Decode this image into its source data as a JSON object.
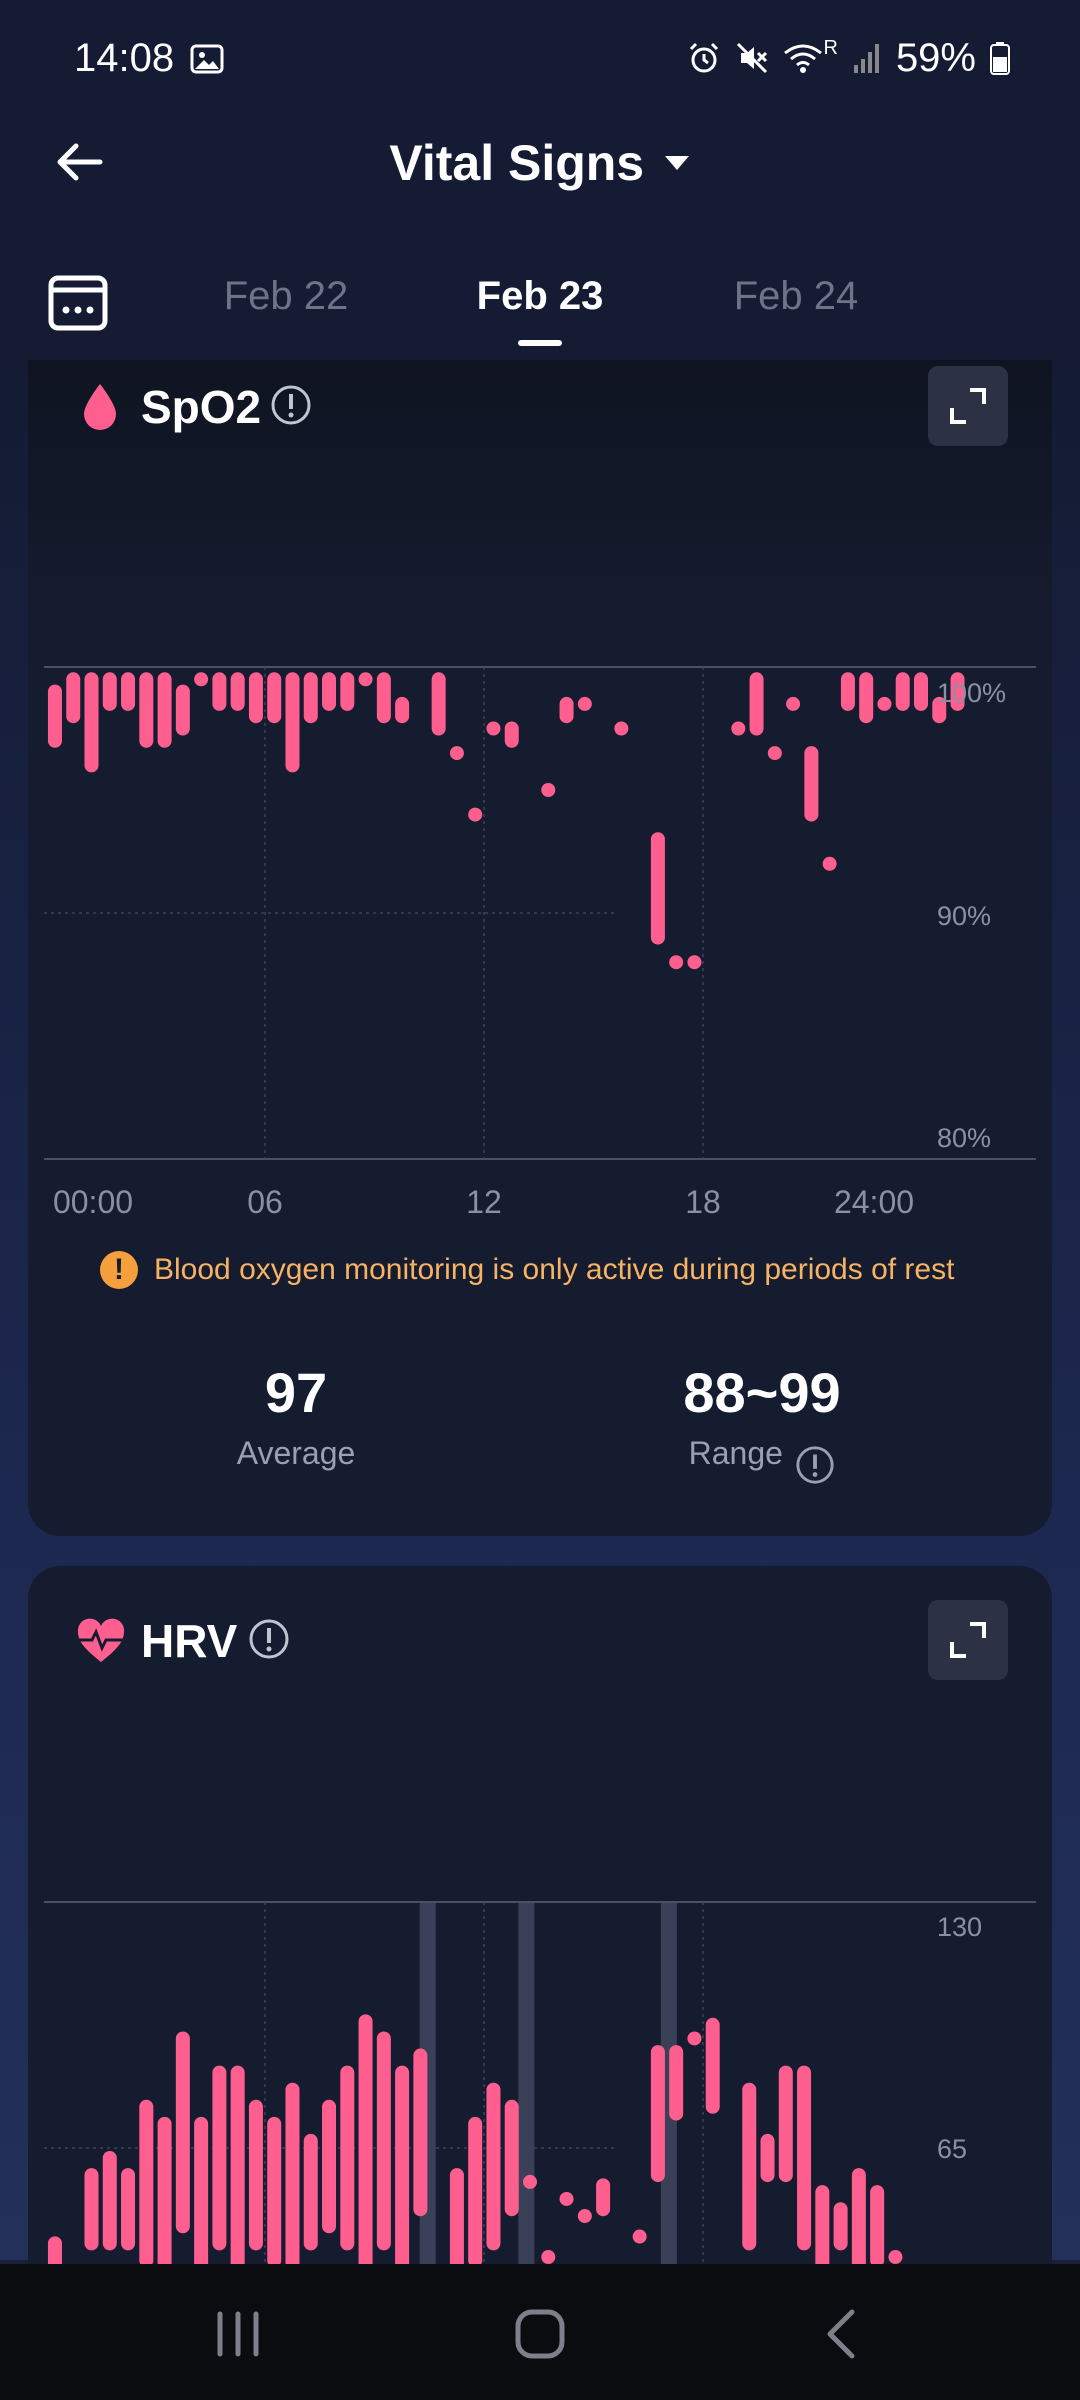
{
  "status_bar": {
    "time": "14:08",
    "battery": "59%",
    "network_sup": "R"
  },
  "header": {
    "title": "Vital Signs",
    "icons": [
      "back-arrow-icon",
      "dropdown-caret-icon"
    ]
  },
  "date_tabs": {
    "tabs": [
      {
        "label": "Feb 22",
        "active": false
      },
      {
        "label": "Feb 23",
        "active": true
      },
      {
        "label": "Feb 24",
        "active": false
      }
    ],
    "calendar_icon": "calendar-icon"
  },
  "spo2": {
    "title": "SpO2",
    "icon": "blood-drop-icon",
    "accent": "#ff5f8f",
    "notice": "Blood oxygen monitoring is only active during periods of rest",
    "notice_color": "#f5a03c",
    "average_value": "97",
    "average_label": "Average",
    "range_value": "88~99",
    "range_label": "Range"
  },
  "hrv": {
    "title": "HRV",
    "icon": "heart-pulse-icon",
    "accent": "#ff5f8f"
  },
  "nav_bar": {
    "icons": [
      "recents-icon",
      "home-icon",
      "back-icon"
    ]
  },
  "chart_data": [
    {
      "type": "bar",
      "name": "SpO2",
      "unit": "%",
      "x_axis": {
        "ticks": [
          "00:00",
          "06",
          "12",
          "18",
          "24:00"
        ],
        "range_hours": [
          0,
          24
        ]
      },
      "y_axis": {
        "ticks": [
          "100%",
          "90%",
          "80%"
        ],
        "range": [
          80,
          101
        ],
        "position": "right"
      },
      "grid": true,
      "series": [
        {
          "values": [
            [
              0.3,
              97,
              99
            ],
            [
              0.8,
              98,
              99.5
            ],
            [
              1.3,
              96,
              99.5
            ],
            [
              1.8,
              98.5,
              99.5
            ],
            [
              2.3,
              98.5,
              99.5
            ],
            [
              2.8,
              97,
              99.5
            ],
            [
              3.3,
              97,
              99.5
            ],
            [
              3.8,
              97.5,
              99
            ],
            [
              4.3,
              99.5,
              99.5
            ],
            [
              4.8,
              98.5,
              99.5
            ],
            [
              5.3,
              98.5,
              99.5
            ],
            [
              5.8,
              98,
              99.5
            ],
            [
              6.3,
              98,
              99.5
            ],
            [
              6.8,
              96,
              99.5
            ],
            [
              7.3,
              98,
              99.5
            ],
            [
              7.8,
              98.5,
              99.5
            ],
            [
              8.3,
              98.5,
              99.5
            ],
            [
              8.8,
              99.5,
              99.5
            ],
            [
              9.3,
              98,
              99.5
            ],
            [
              9.8,
              98,
              98.5
            ],
            [
              10.8,
              97.5,
              99.5
            ],
            [
              11.3,
              96.5,
              96.5
            ],
            [
              11.8,
              94,
              94
            ],
            [
              12.3,
              97.5,
              97.5
            ],
            [
              12.8,
              97,
              97.5
            ],
            [
              13.8,
              95,
              95
            ],
            [
              14.3,
              98,
              98.5
            ],
            [
              14.8,
              98.5,
              98.5
            ],
            [
              15.8,
              97.5,
              97.5
            ],
            [
              16.8,
              89,
              93
            ],
            [
              17.3,
              88,
              88
            ],
            [
              17.8,
              88,
              88
            ],
            [
              19.0,
              97.5,
              97.5
            ],
            [
              19.5,
              97.5,
              99.5
            ],
            [
              20.0,
              96.5,
              96.5
            ],
            [
              20.5,
              98.5,
              98.5
            ],
            [
              21.0,
              94,
              96.5
            ],
            [
              21.5,
              92,
              92
            ],
            [
              22.0,
              98.5,
              99.5
            ],
            [
              22.5,
              98,
              99.5
            ],
            [
              23.0,
              98.5,
              98.5
            ],
            [
              23.5,
              98.5,
              99.5
            ],
            [
              24.0,
              98.5,
              99.5
            ],
            [
              24.5,
              98,
              98.5
            ],
            [
              25.0,
              98.5,
              99.5
            ]
          ],
          "value_format": "[hour, low, high]"
        }
      ]
    },
    {
      "type": "bar",
      "name": "HRV",
      "x_axis": {
        "range_hours": [
          0,
          24
        ]
      },
      "y_axis": {
        "ticks": [
          "130",
          "65"
        ],
        "position": "right"
      },
      "grid": true,
      "highlight_bands_hours": [
        10.5,
        13.2,
        17.1
      ],
      "series": [
        {
          "values": [
            [
              0.3,
              30,
              40
            ],
            [
              1.3,
              40,
              60
            ],
            [
              1.8,
              40,
              65
            ],
            [
              2.3,
              40,
              60
            ],
            [
              2.8,
              35,
              80
            ],
            [
              3.3,
              30,
              75
            ],
            [
              3.8,
              45,
              100
            ],
            [
              4.3,
              30,
              75
            ],
            [
              4.8,
              40,
              90
            ],
            [
              5.3,
              30,
              90
            ],
            [
              5.8,
              40,
              80
            ],
            [
              6.3,
              35,
              75
            ],
            [
              6.8,
              30,
              85
            ],
            [
              7.3,
              40,
              70
            ],
            [
              7.8,
              45,
              80
            ],
            [
              8.3,
              40,
              90
            ],
            [
              8.8,
              30,
              105
            ],
            [
              9.3,
              40,
              100
            ],
            [
              9.8,
              30,
              90
            ],
            [
              10.3,
              50,
              95
            ],
            [
              11.3,
              30,
              60
            ],
            [
              11.8,
              35,
              75
            ],
            [
              12.3,
              40,
              85
            ],
            [
              12.8,
              50,
              80
            ],
            [
              13.3,
              58,
              58
            ],
            [
              13.8,
              36,
              36
            ],
            [
              14.3,
              53,
              53
            ],
            [
              14.8,
              48,
              48
            ],
            [
              15.3,
              50,
              57
            ],
            [
              16.3,
              42,
              42
            ],
            [
              16.8,
              60,
              96
            ],
            [
              17.3,
              78,
              96
            ],
            [
              17.8,
              100,
              100
            ],
            [
              18.3,
              80,
              104
            ],
            [
              19.3,
              40,
              85
            ],
            [
              19.8,
              60,
              70
            ],
            [
              20.3,
              60,
              90
            ],
            [
              20.8,
              40,
              90
            ],
            [
              21.3,
              32,
              55
            ],
            [
              21.8,
              40,
              50
            ],
            [
              22.3,
              32,
              60
            ],
            [
              22.8,
              35,
              55
            ],
            [
              23.3,
              36,
              36
            ]
          ],
          "value_format": "[hour, low, high]"
        }
      ]
    }
  ]
}
